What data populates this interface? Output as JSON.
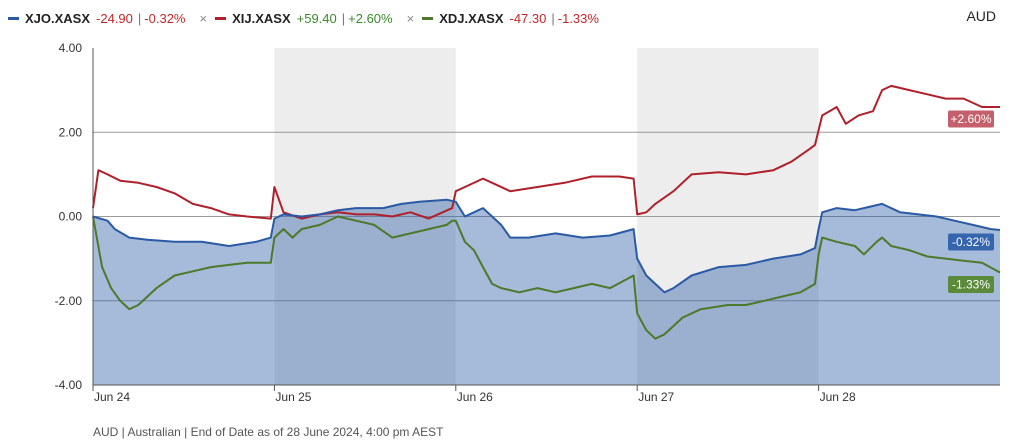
{
  "currency": "AUD",
  "footnote": "AUD | Australian | End of Date as of 28 June 2024, 4:00 pm AEST",
  "colors": {
    "xjo": "#2a5aa6",
    "xij": "#b0202a",
    "xdj": "#4a7a2a",
    "positive": "#3a8a2a",
    "negative": "#c0282a"
  },
  "legend": [
    {
      "name": "XJO.XASX",
      "change": "-24.90",
      "pct": "-0.32%",
      "sign": "negative",
      "color": "#2a5aa6",
      "removable": false
    },
    {
      "name": "XIJ.XASX",
      "change": "+59.40",
      "pct": "+2.60%",
      "sign": "positive",
      "color": "#b0202a",
      "removable": true
    },
    {
      "name": "XDJ.XASX",
      "change": "-47.30",
      "pct": "-1.33%",
      "sign": "negative",
      "color": "#4a7a2a",
      "removable": true
    }
  ],
  "chart_data": {
    "type": "line",
    "x_range": [
      0,
      5
    ],
    "x_ticks": [
      {
        "x": 0,
        "label": "Jun 24"
      },
      {
        "x": 1,
        "label": "Jun 25"
      },
      {
        "x": 2,
        "label": "Jun 26"
      },
      {
        "x": 3,
        "label": "Jun 27"
      },
      {
        "x": 4,
        "label": "Jun 28"
      }
    ],
    "y_ticks": [
      {
        "y": 4,
        "label": "4.00"
      },
      {
        "y": 2,
        "label": "2.00"
      },
      {
        "y": 0,
        "label": "0.00"
      },
      {
        "y": -2,
        "label": "-2.00"
      },
      {
        "y": -4,
        "label": "-4.00"
      }
    ],
    "ylim": [
      -4,
      4
    ],
    "shaded_days": [
      [
        1,
        2
      ],
      [
        3,
        4
      ]
    ],
    "series": [
      {
        "name": "XJO.XASX",
        "color": "#2a5aa6",
        "fill": true,
        "end_label": "-0.32%",
        "points": [
          [
            0,
            0.0
          ],
          [
            0.08,
            -0.1
          ],
          [
            0.12,
            -0.3
          ],
          [
            0.2,
            -0.5
          ],
          [
            0.3,
            -0.55
          ],
          [
            0.45,
            -0.6
          ],
          [
            0.6,
            -0.6
          ],
          [
            0.75,
            -0.7
          ],
          [
            0.9,
            -0.6
          ],
          [
            0.98,
            -0.5
          ],
          [
            1.0,
            -0.05
          ],
          [
            1.05,
            0.05
          ],
          [
            1.15,
            0.0
          ],
          [
            1.25,
            0.05
          ],
          [
            1.35,
            0.15
          ],
          [
            1.45,
            0.2
          ],
          [
            1.6,
            0.2
          ],
          [
            1.7,
            0.3
          ],
          [
            1.8,
            0.35
          ],
          [
            1.95,
            0.4
          ],
          [
            2.0,
            0.35
          ],
          [
            2.05,
            0.0
          ],
          [
            2.1,
            0.1
          ],
          [
            2.15,
            0.2
          ],
          [
            2.2,
            0.0
          ],
          [
            2.25,
            -0.2
          ],
          [
            2.3,
            -0.5
          ],
          [
            2.4,
            -0.5
          ],
          [
            2.55,
            -0.4
          ],
          [
            2.7,
            -0.5
          ],
          [
            2.85,
            -0.45
          ],
          [
            2.98,
            -0.3
          ],
          [
            3.0,
            -1.0
          ],
          [
            3.05,
            -1.4
          ],
          [
            3.1,
            -1.6
          ],
          [
            3.15,
            -1.8
          ],
          [
            3.2,
            -1.7
          ],
          [
            3.3,
            -1.4
          ],
          [
            3.45,
            -1.2
          ],
          [
            3.6,
            -1.15
          ],
          [
            3.75,
            -1.0
          ],
          [
            3.9,
            -0.9
          ],
          [
            3.98,
            -0.75
          ],
          [
            4.0,
            -0.3
          ],
          [
            4.02,
            0.1
          ],
          [
            4.1,
            0.2
          ],
          [
            4.2,
            0.15
          ],
          [
            4.3,
            0.25
          ],
          [
            4.35,
            0.3
          ],
          [
            4.45,
            0.1
          ],
          [
            4.55,
            0.05
          ],
          [
            4.65,
            0.0
          ],
          [
            4.75,
            -0.1
          ],
          [
            4.85,
            -0.2
          ],
          [
            4.95,
            -0.3
          ],
          [
            5.0,
            -0.32
          ]
        ]
      },
      {
        "name": "XIJ.XASX",
        "color": "#b0202a",
        "fill": false,
        "end_label": "+2.60%",
        "points": [
          [
            0,
            0.2
          ],
          [
            0.03,
            1.1
          ],
          [
            0.08,
            1.0
          ],
          [
            0.15,
            0.85
          ],
          [
            0.25,
            0.8
          ],
          [
            0.35,
            0.7
          ],
          [
            0.45,
            0.55
          ],
          [
            0.55,
            0.3
          ],
          [
            0.65,
            0.2
          ],
          [
            0.75,
            0.05
          ],
          [
            0.85,
            0.0
          ],
          [
            0.98,
            -0.05
          ],
          [
            1.0,
            0.7
          ],
          [
            1.05,
            0.1
          ],
          [
            1.15,
            -0.05
          ],
          [
            1.25,
            0.05
          ],
          [
            1.35,
            0.1
          ],
          [
            1.45,
            0.05
          ],
          [
            1.55,
            0.05
          ],
          [
            1.65,
            0.0
          ],
          [
            1.75,
            0.1
          ],
          [
            1.85,
            -0.05
          ],
          [
            1.98,
            0.2
          ],
          [
            2.0,
            0.6
          ],
          [
            2.05,
            0.7
          ],
          [
            2.15,
            0.9
          ],
          [
            2.2,
            0.8
          ],
          [
            2.3,
            0.6
          ],
          [
            2.45,
            0.7
          ],
          [
            2.6,
            0.8
          ],
          [
            2.75,
            0.95
          ],
          [
            2.9,
            0.95
          ],
          [
            2.98,
            0.9
          ],
          [
            3.0,
            0.05
          ],
          [
            3.05,
            0.1
          ],
          [
            3.1,
            0.3
          ],
          [
            3.2,
            0.6
          ],
          [
            3.3,
            1.0
          ],
          [
            3.45,
            1.05
          ],
          [
            3.6,
            1.0
          ],
          [
            3.75,
            1.1
          ],
          [
            3.85,
            1.3
          ],
          [
            3.95,
            1.6
          ],
          [
            3.98,
            1.7
          ],
          [
            4.02,
            2.4
          ],
          [
            4.06,
            2.5
          ],
          [
            4.1,
            2.6
          ],
          [
            4.15,
            2.2
          ],
          [
            4.22,
            2.4
          ],
          [
            4.3,
            2.5
          ],
          [
            4.35,
            3.0
          ],
          [
            4.4,
            3.1
          ],
          [
            4.5,
            3.0
          ],
          [
            4.6,
            2.9
          ],
          [
            4.7,
            2.8
          ],
          [
            4.8,
            2.8
          ],
          [
            4.9,
            2.6
          ],
          [
            5.0,
            2.6
          ]
        ]
      },
      {
        "name": "XDJ.XASX",
        "color": "#4a7a2a",
        "fill": false,
        "end_label": "-1.33%",
        "points": [
          [
            0,
            0.0
          ],
          [
            0.05,
            -1.2
          ],
          [
            0.1,
            -1.7
          ],
          [
            0.15,
            -2.0
          ],
          [
            0.2,
            -2.2
          ],
          [
            0.25,
            -2.1
          ],
          [
            0.35,
            -1.7
          ],
          [
            0.45,
            -1.4
          ],
          [
            0.55,
            -1.3
          ],
          [
            0.65,
            -1.2
          ],
          [
            0.75,
            -1.15
          ],
          [
            0.85,
            -1.1
          ],
          [
            0.98,
            -1.1
          ],
          [
            1.0,
            -0.5
          ],
          [
            1.05,
            -0.3
          ],
          [
            1.1,
            -0.5
          ],
          [
            1.15,
            -0.3
          ],
          [
            1.25,
            -0.2
          ],
          [
            1.35,
            0.0
          ],
          [
            1.45,
            -0.1
          ],
          [
            1.55,
            -0.2
          ],
          [
            1.65,
            -0.5
          ],
          [
            1.75,
            -0.4
          ],
          [
            1.85,
            -0.3
          ],
          [
            1.95,
            -0.2
          ],
          [
            1.98,
            -0.1
          ],
          [
            2.0,
            -0.1
          ],
          [
            2.05,
            -0.6
          ],
          [
            2.1,
            -0.8
          ],
          [
            2.15,
            -1.2
          ],
          [
            2.2,
            -1.6
          ],
          [
            2.25,
            -1.7
          ],
          [
            2.35,
            -1.8
          ],
          [
            2.45,
            -1.7
          ],
          [
            2.55,
            -1.8
          ],
          [
            2.65,
            -1.7
          ],
          [
            2.75,
            -1.6
          ],
          [
            2.85,
            -1.7
          ],
          [
            2.98,
            -1.4
          ],
          [
            3.0,
            -2.3
          ],
          [
            3.05,
            -2.7
          ],
          [
            3.1,
            -2.9
          ],
          [
            3.15,
            -2.8
          ],
          [
            3.25,
            -2.4
          ],
          [
            3.35,
            -2.2
          ],
          [
            3.5,
            -2.1
          ],
          [
            3.6,
            -2.1
          ],
          [
            3.7,
            -2.0
          ],
          [
            3.8,
            -1.9
          ],
          [
            3.9,
            -1.8
          ],
          [
            3.98,
            -1.6
          ],
          [
            4.0,
            -0.9
          ],
          [
            4.02,
            -0.5
          ],
          [
            4.1,
            -0.6
          ],
          [
            4.2,
            -0.7
          ],
          [
            4.25,
            -0.9
          ],
          [
            4.32,
            -0.6
          ],
          [
            4.35,
            -0.5
          ],
          [
            4.4,
            -0.7
          ],
          [
            4.5,
            -0.8
          ],
          [
            4.6,
            -0.95
          ],
          [
            4.7,
            -1.0
          ],
          [
            4.8,
            -1.05
          ],
          [
            4.9,
            -1.1
          ],
          [
            5.0,
            -1.33
          ]
        ]
      }
    ]
  }
}
